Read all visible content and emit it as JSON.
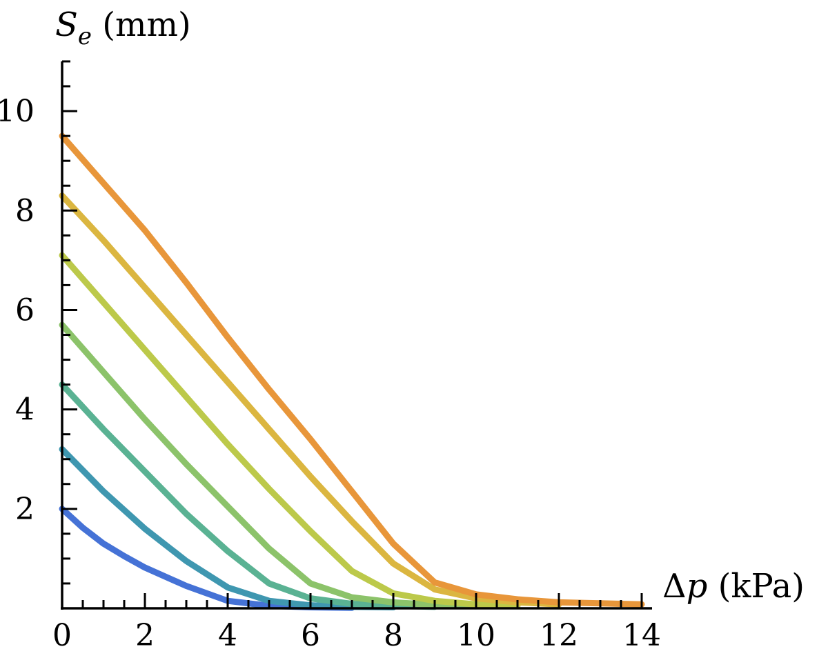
{
  "chart_data": {
    "type": "line",
    "title": "",
    "xlabel": {
      "symbol": "Δ",
      "var": "p",
      "unit": " (kPa)"
    },
    "ylabel": {
      "var": "S",
      "sub": "e",
      "unit": " (mm)"
    },
    "xlim": [
      0,
      14
    ],
    "ylim": [
      0,
      11
    ],
    "x_ticks": [
      0,
      2,
      4,
      6,
      8,
      10,
      12,
      14
    ],
    "y_ticks": [
      2,
      4,
      6,
      8,
      10
    ],
    "x_minor_step": 0.5,
    "y_minor_step": 0.5,
    "grid": false,
    "series": [
      {
        "color": "#4572d6",
        "x": [
          0,
          0.5,
          1,
          1.5,
          2,
          3,
          4,
          5,
          6,
          7
        ],
        "y": [
          2.0,
          1.62,
          1.3,
          1.05,
          0.82,
          0.45,
          0.15,
          0.05,
          0.02,
          0.01
        ]
      },
      {
        "color": "#3f97b0",
        "x": [
          0,
          1,
          2,
          3,
          4,
          5,
          6,
          7,
          8
        ],
        "y": [
          3.2,
          2.35,
          1.6,
          0.95,
          0.42,
          0.15,
          0.06,
          0.03,
          0.02
        ]
      },
      {
        "color": "#5ab293",
        "x": [
          0,
          1,
          2,
          3,
          4,
          5,
          6,
          7,
          8,
          9
        ],
        "y": [
          4.5,
          3.6,
          2.75,
          1.9,
          1.15,
          0.5,
          0.2,
          0.09,
          0.05,
          0.03
        ]
      },
      {
        "color": "#8cc36a",
        "x": [
          0,
          1,
          2,
          3,
          4,
          5,
          6,
          7,
          8,
          9,
          10
        ],
        "y": [
          5.7,
          4.75,
          3.8,
          2.9,
          2.05,
          1.2,
          0.5,
          0.22,
          0.12,
          0.07,
          0.04
        ]
      },
      {
        "color": "#bcc94a",
        "x": [
          0,
          1,
          2,
          3,
          4,
          5,
          6,
          7,
          8,
          9,
          10,
          11
        ],
        "y": [
          7.1,
          6.15,
          5.2,
          4.25,
          3.3,
          2.4,
          1.55,
          0.75,
          0.3,
          0.15,
          0.08,
          0.05
        ]
      },
      {
        "color": "#dbb640",
        "x": [
          0,
          1,
          2,
          3,
          4,
          5,
          6,
          7,
          8,
          9,
          10,
          11,
          12
        ],
        "y": [
          8.3,
          7.4,
          6.45,
          5.5,
          4.55,
          3.6,
          2.65,
          1.75,
          0.9,
          0.38,
          0.2,
          0.12,
          0.08
        ]
      },
      {
        "color": "#e8963a",
        "x": [
          0,
          1,
          2,
          3,
          4,
          5,
          6,
          7,
          8,
          9,
          10,
          11,
          12,
          13,
          14
        ],
        "y": [
          9.5,
          8.55,
          7.6,
          6.55,
          5.45,
          4.4,
          3.4,
          2.35,
          1.3,
          0.52,
          0.28,
          0.18,
          0.12,
          0.1,
          0.08
        ]
      }
    ]
  }
}
